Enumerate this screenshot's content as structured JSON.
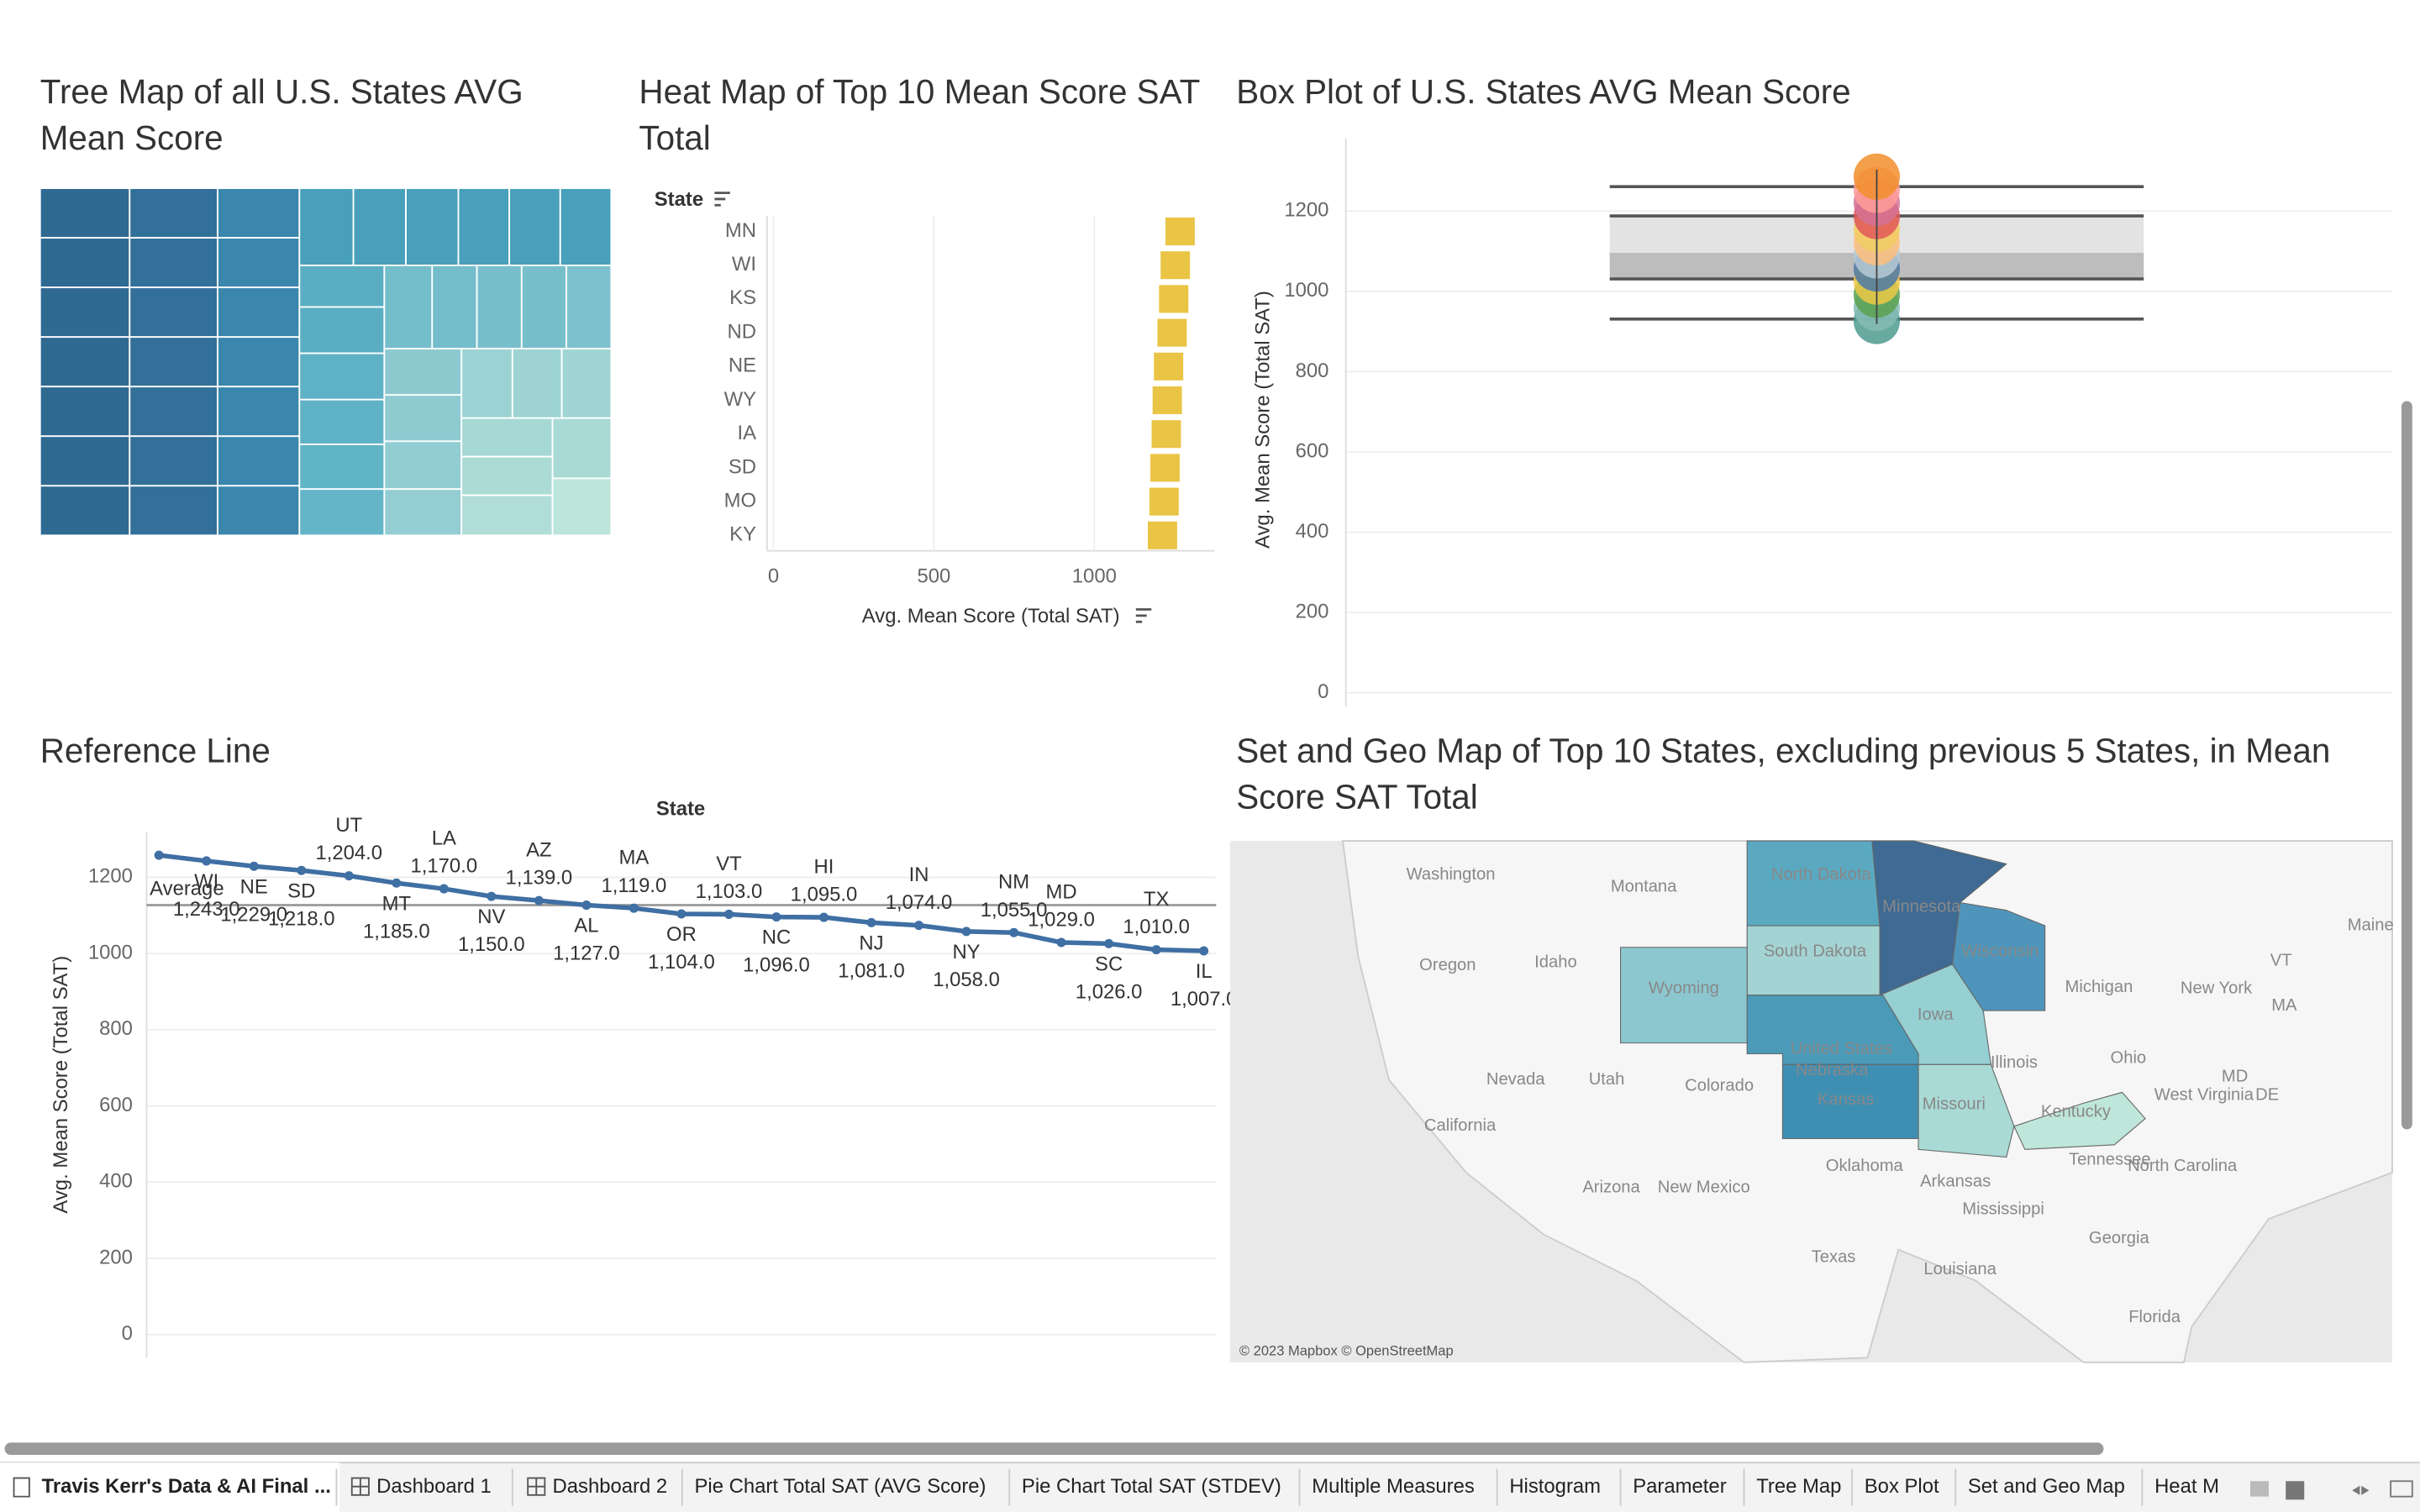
{
  "chart_data": [
    {
      "type": "treemap",
      "title": "Tree Map of all U.S. States AVG Mean Score"
    },
    {
      "type": "bar",
      "orientation": "horizontal",
      "title": "Heat Map of Top 10 Mean Score SAT Total",
      "y_header": "State",
      "x_label": "Avg. Mean Score (Total SAT)",
      "categories": [
        "MN",
        "WI",
        "KS",
        "ND",
        "NE",
        "WY",
        "IA",
        "SD",
        "MO",
        "KY"
      ],
      "values": [
        1265,
        1250,
        1245,
        1240,
        1229,
        1225,
        1222,
        1218,
        1215,
        1210
      ],
      "color": "#e9c445",
      "xlim": [
        -20,
        1375
      ],
      "xticks": [
        0,
        500,
        {
          "value": 1000,
          "label": "1000"
        }
      ],
      "grid": true
    },
    {
      "type": "box",
      "title": "Box Plot of U.S. States AVG Mean Score",
      "y_label": "Avg. Mean Score (Total SAT)",
      "whisker_high": 1261,
      "q3": 1188,
      "median": 1092,
      "q1": 1031,
      "whisker_low": 931,
      "ylim": [
        0,
        1380
      ],
      "yticks": [
        0,
        200,
        400,
        600,
        800,
        1000,
        1200
      ],
      "grid": true
    },
    {
      "type": "line",
      "title": "Reference Line",
      "x_header": "State",
      "y_label": "Avg. Mean Score (Total SAT)",
      "categories": [
        null,
        "WI",
        "NE",
        "SD",
        "UT",
        "MT",
        "LA",
        "NV",
        "AZ",
        "AL",
        "MA",
        "OR",
        "VT",
        "NC",
        "HI",
        "NJ",
        "IN",
        "NY",
        "NM",
        "MD",
        "SC",
        "TX",
        "IL"
      ],
      "values": [
        1258,
        1243,
        1229,
        1218,
        1204,
        1185,
        1170,
        1150,
        1139,
        1127,
        1119,
        1104,
        1103,
        1096,
        1095,
        1081,
        1074,
        1058,
        1055,
        1029,
        1026,
        1010,
        1007
      ],
      "value_labels": [
        null,
        "1,243.0",
        "1,229.0",
        "1,218.0",
        "1,204.0",
        "1,185.0",
        "1,170.0",
        "1,150.0",
        "1,139.0",
        "1,127.0",
        "1,119.0",
        "1,104.0",
        "1,103.0",
        "1,096.0",
        "1,095.0",
        "1,081.0",
        "1,074.0",
        "1,058.0",
        "1,055.0",
        "1,029.0",
        "1,026.0",
        "1,010.0",
        "1,007.0"
      ],
      "color": "#3f6fa3",
      "reference_line": {
        "label": "Average",
        "value": 1127
      },
      "ylim": [
        0,
        1320
      ],
      "yticks": [
        0,
        200,
        400,
        600,
        800,
        1000,
        1200
      ],
      "grid": true
    },
    {
      "type": "map",
      "title": "Set and Geo Map of Top 10 States, excluding previous 5 States, in Mean Score SAT Total"
    }
  ],
  "map": {
    "labels": [
      "Washington",
      "Montana",
      "North Dakota",
      "Minnesota",
      "Oregon",
      "Idaho",
      "South Dakota",
      "Wisconsin",
      "Michigan",
      "New York",
      "Wyoming",
      "Iowa",
      "Nevada",
      "Utah",
      "Colorado",
      "United States",
      "Nebraska",
      "Illinois",
      "Ohio",
      "California",
      "Kansas",
      "Missouri",
      "Kentucky",
      "Arizona",
      "New Mexico",
      "Oklahoma",
      "Arkansas",
      "Tennessee",
      "North Carolina",
      "Mississippi",
      "Texas",
      "Georgia",
      "Louisiana",
      "Florida",
      "West Virginia",
      "VT",
      "MA",
      "MD",
      "DE",
      "Maine"
    ],
    "copyright": "© 2023 Mapbox © OpenStreetMap"
  },
  "tabs": [
    "Travis Kerr's Data & AI Final ...",
    "Dashboard 1",
    "Dashboard 2",
    "Pie Chart Total SAT (AVG Score)",
    "Pie Chart Total SAT (STDEV)",
    "Multiple Measures",
    "Histogram",
    "Parameter",
    "Tree Map",
    "Box Plot",
    "Set and Geo Map",
    "Heat M"
  ]
}
